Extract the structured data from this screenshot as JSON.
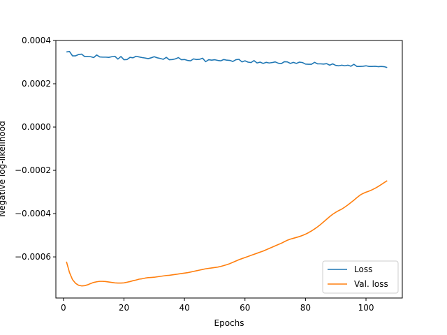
{
  "chart_data": {
    "type": "line",
    "xlabel": "Epochs",
    "ylabel": "Negative log-likelihood",
    "xlim": [
      -2.5,
      112
    ],
    "ylim": [
      -0.00079,
      0.0004
    ],
    "xticks": [
      0,
      20,
      40,
      60,
      80,
      100
    ],
    "xtick_labels": [
      "0",
      "20",
      "40",
      "60",
      "80",
      "100"
    ],
    "yticks": [
      -0.0006,
      -0.0004,
      -0.0002,
      0.0,
      0.0002,
      0.0004
    ],
    "ytick_labels": [
      "−0.0006",
      "−0.0004",
      "−0.0002",
      "0.0000",
      "0.0002",
      "0.0004"
    ],
    "legend_position": "lower-right",
    "grid": false,
    "series": [
      {
        "name": "Loss",
        "color": "#1f77b4",
        "x": [
          1,
          2,
          3,
          4,
          5,
          6,
          7,
          8,
          9,
          10,
          11,
          12,
          13,
          14,
          15,
          16,
          17,
          18,
          19,
          20,
          21,
          22,
          23,
          24,
          25,
          26,
          27,
          28,
          29,
          30,
          31,
          32,
          33,
          34,
          35,
          36,
          37,
          38,
          39,
          40,
          41,
          42,
          43,
          44,
          45,
          46,
          47,
          48,
          49,
          50,
          51,
          52,
          53,
          54,
          55,
          56,
          57,
          58,
          59,
          60,
          61,
          62,
          63,
          64,
          65,
          66,
          67,
          68,
          69,
          70,
          71,
          72,
          73,
          74,
          75,
          76,
          77,
          78,
          79,
          80,
          81,
          82,
          83,
          84,
          85,
          86,
          87,
          88,
          89,
          90,
          91,
          92,
          93,
          94,
          95,
          96,
          97,
          98,
          99,
          100,
          101,
          102,
          103,
          104,
          105,
          106,
          107
        ],
        "values": [
          0.000347,
          0.000349,
          0.000329,
          0.000329,
          0.000335,
          0.000337,
          0.000326,
          0.000326,
          0.000325,
          0.000321,
          0.000333,
          0.000324,
          0.000323,
          0.000323,
          0.000322,
          0.000325,
          0.000327,
          0.000314,
          0.000326,
          0.000311,
          0.000312,
          0.000322,
          0.00032,
          0.000327,
          0.000324,
          0.000321,
          0.000319,
          0.000316,
          0.00032,
          0.000325,
          0.00032,
          0.000317,
          0.000313,
          0.000322,
          0.000311,
          0.000312,
          0.000315,
          0.000321,
          0.000311,
          0.000312,
          0.000308,
          0.000306,
          0.000315,
          0.000312,
          0.000313,
          0.000318,
          0.000302,
          0.000311,
          0.000309,
          0.000311,
          0.000308,
          0.000306,
          0.000312,
          0.000309,
          0.000308,
          0.000303,
          0.000311,
          0.000313,
          0.000301,
          0.000306,
          0.0003,
          0.000298,
          0.000307,
          0.000296,
          0.0003,
          0.000294,
          0.000299,
          0.000296,
          0.000298,
          0.000301,
          0.000295,
          0.000293,
          0.000302,
          0.000301,
          0.000294,
          0.000299,
          0.000294,
          0.0003,
          0.000298,
          0.000291,
          0.00029,
          0.00029,
          0.000299,
          0.000292,
          0.000292,
          0.000291,
          0.000293,
          0.000286,
          0.000292,
          0.000285,
          0.000283,
          0.000286,
          0.000283,
          0.000286,
          0.000281,
          0.00029,
          0.00028,
          0.00028,
          0.000281,
          0.000283,
          0.00028,
          0.00028,
          0.000281,
          0.000279,
          0.00028,
          0.000279,
          0.000275
        ]
      },
      {
        "name": "Val. loss",
        "color": "#ff7f0e",
        "x": [
          1,
          2,
          3,
          4,
          5,
          6,
          7,
          8,
          9,
          10,
          11,
          12,
          13,
          14,
          15,
          16,
          17,
          18,
          19,
          20,
          21,
          22,
          23,
          24,
          25,
          26,
          27,
          28,
          29,
          30,
          31,
          32,
          33,
          34,
          35,
          36,
          37,
          38,
          39,
          40,
          41,
          42,
          43,
          44,
          45,
          46,
          47,
          48,
          49,
          50,
          51,
          52,
          53,
          54,
          55,
          56,
          57,
          58,
          59,
          60,
          61,
          62,
          63,
          64,
          65,
          66,
          67,
          68,
          69,
          70,
          71,
          72,
          73,
          74,
          75,
          76,
          77,
          78,
          79,
          80,
          81,
          82,
          83,
          84,
          85,
          86,
          87,
          88,
          89,
          90,
          91,
          92,
          93,
          94,
          95,
          96,
          97,
          98,
          99,
          100,
          101,
          102,
          103,
          104,
          105,
          106,
          107
        ],
        "values": [
          -0.000622,
          -0.000672,
          -0.000705,
          -0.000722,
          -0.000731,
          -0.000734,
          -0.000733,
          -0.000729,
          -0.000723,
          -0.000718,
          -0.000715,
          -0.000713,
          -0.000713,
          -0.000714,
          -0.000716,
          -0.000718,
          -0.00072,
          -0.000721,
          -0.000721,
          -0.00072,
          -0.000717,
          -0.000714,
          -0.00071,
          -0.000707,
          -0.000703,
          -0.000701,
          -0.000698,
          -0.000696,
          -0.000695,
          -0.000694,
          -0.000692,
          -0.00069,
          -0.000688,
          -0.000686,
          -0.000685,
          -0.000683,
          -0.000681,
          -0.000679,
          -0.000677,
          -0.000675,
          -0.000673,
          -0.00067,
          -0.000667,
          -0.000664,
          -0.000661,
          -0.000658,
          -0.000655,
          -0.000653,
          -0.000651,
          -0.000649,
          -0.000647,
          -0.000644,
          -0.00064,
          -0.000636,
          -0.000631,
          -0.000625,
          -0.000619,
          -0.000613,
          -0.000608,
          -0.000603,
          -0.000598,
          -0.000593,
          -0.000588,
          -0.000583,
          -0.000578,
          -0.000573,
          -0.000567,
          -0.000561,
          -0.000555,
          -0.000549,
          -0.000543,
          -0.000537,
          -0.00053,
          -0.000523,
          -0.000518,
          -0.000514,
          -0.00051,
          -0.000506,
          -0.000501,
          -0.000495,
          -0.000488,
          -0.00048,
          -0.000471,
          -0.000461,
          -0.00045,
          -0.000438,
          -0.000426,
          -0.000414,
          -0.000403,
          -0.000394,
          -0.000386,
          -0.000379,
          -0.00037,
          -0.00036,
          -0.000349,
          -0.000338,
          -0.000326,
          -0.000315,
          -0.000307,
          -0.000301,
          -0.000296,
          -0.00029,
          -0.000283,
          -0.000275,
          -0.000266,
          -0.000257,
          -0.000248
        ]
      }
    ]
  }
}
